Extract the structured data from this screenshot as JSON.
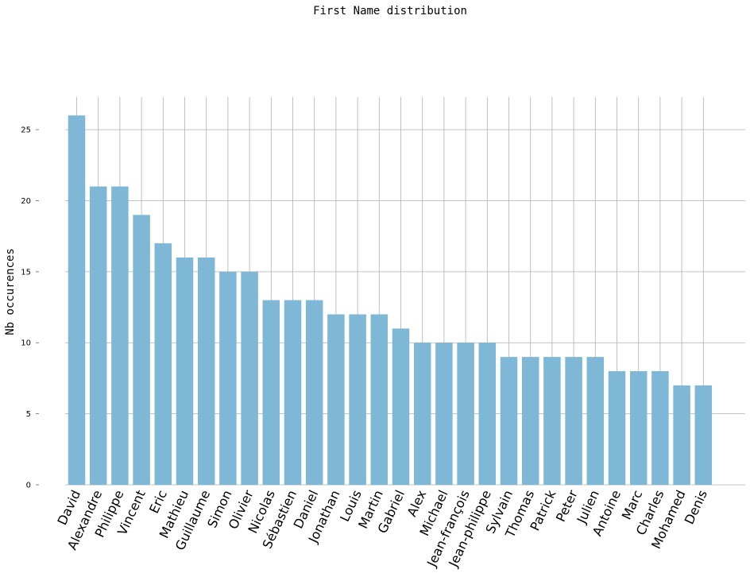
{
  "chart_data": {
    "type": "bar",
    "title": "First Name distribution",
    "xlabel": "",
    "ylabel": "Nb occurences",
    "ylim": [
      0,
      27.3
    ],
    "yticks": [
      0,
      5,
      10,
      15,
      20,
      25
    ],
    "grid": true,
    "color": "#7eb8d6",
    "categories": [
      "David",
      "Alexandre",
      "Philippe",
      "Vincent",
      "Eric",
      "Mathieu",
      "Guillaume",
      "Simon",
      "Olivier",
      "Nicolas",
      "Sébastien",
      "Daniel",
      "Jonathan",
      "Louis",
      "Martin",
      "Gabriel",
      "Alex",
      "Michael",
      "Jean-françois",
      "Jean-philippe",
      "Sylvain",
      "Thomas",
      "Patrick",
      "Peter",
      "Julien",
      "Antoine",
      "Marc",
      "Charles",
      "Mohamed",
      "Denis"
    ],
    "values": [
      26,
      21,
      21,
      19,
      17,
      16,
      16,
      15,
      15,
      13,
      13,
      13,
      12,
      12,
      12,
      11,
      10,
      10,
      10,
      10,
      9,
      9,
      9,
      9,
      9,
      8,
      8,
      8,
      7,
      7
    ]
  }
}
